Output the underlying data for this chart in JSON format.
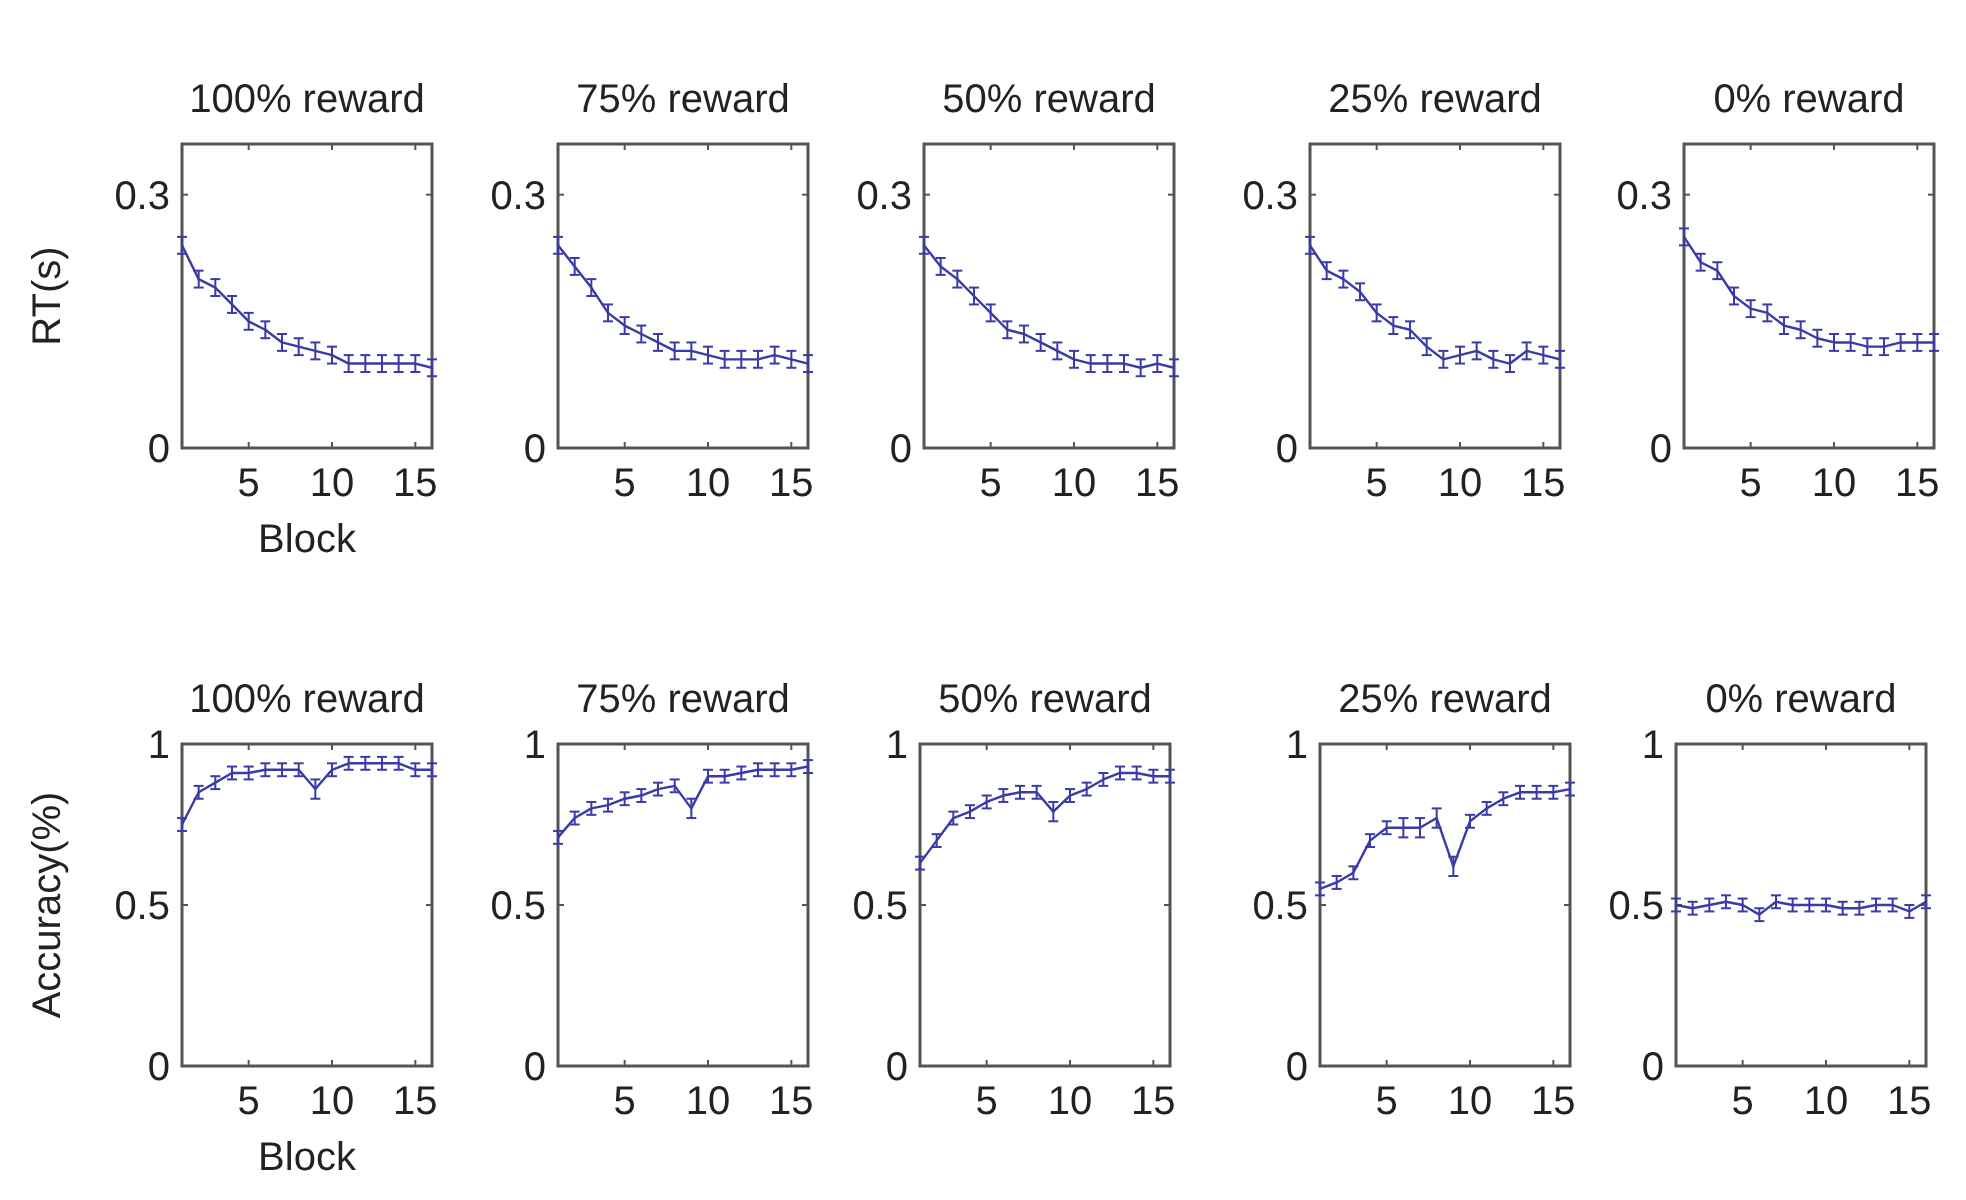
{
  "chart_data": [
    {
      "type": "line",
      "title": "100% reward",
      "xlabel": "Block",
      "ylabel": "RT(s)",
      "x": [
        1,
        2,
        3,
        4,
        5,
        6,
        7,
        8,
        9,
        10,
        11,
        12,
        13,
        14,
        15,
        16
      ],
      "xlim": [
        1,
        16
      ],
      "xticks": [
        5,
        10,
        15
      ],
      "ylim": [
        0,
        0.36
      ],
      "yticks": [
        0,
        0.3
      ],
      "grid": false,
      "series": [
        {
          "color": "#3a3aa8",
          "values": [
            0.24,
            0.2,
            0.19,
            0.17,
            0.15,
            0.14,
            0.125,
            0.12,
            0.115,
            0.11,
            0.1,
            0.1,
            0.1,
            0.1,
            0.1,
            0.095
          ],
          "errors": [
            0.01,
            0.01,
            0.01,
            0.01,
            0.01,
            0.01,
            0.01,
            0.01,
            0.01,
            0.01,
            0.01,
            0.01,
            0.01,
            0.01,
            0.01,
            0.01
          ]
        }
      ]
    },
    {
      "type": "line",
      "title": "75% reward",
      "x": [
        1,
        2,
        3,
        4,
        5,
        6,
        7,
        8,
        9,
        10,
        11,
        12,
        13,
        14,
        15,
        16
      ],
      "xlim": [
        1,
        16
      ],
      "xticks": [
        5,
        10,
        15
      ],
      "ylim": [
        0,
        0.36
      ],
      "yticks": [
        0,
        0.3
      ],
      "grid": false,
      "series": [
        {
          "color": "#3a3aa8",
          "values": [
            0.24,
            0.215,
            0.19,
            0.16,
            0.145,
            0.135,
            0.125,
            0.115,
            0.115,
            0.11,
            0.105,
            0.105,
            0.105,
            0.11,
            0.105,
            0.1
          ],
          "errors": [
            0.01,
            0.01,
            0.01,
            0.01,
            0.01,
            0.01,
            0.01,
            0.01,
            0.01,
            0.01,
            0.01,
            0.01,
            0.01,
            0.01,
            0.01,
            0.01
          ]
        }
      ]
    },
    {
      "type": "line",
      "title": "50% reward",
      "x": [
        1,
        2,
        3,
        4,
        5,
        6,
        7,
        8,
        9,
        10,
        11,
        12,
        13,
        14,
        15,
        16
      ],
      "xlim": [
        1,
        16
      ],
      "xticks": [
        5,
        10,
        15
      ],
      "ylim": [
        0,
        0.36
      ],
      "yticks": [
        0,
        0.3
      ],
      "grid": false,
      "series": [
        {
          "color": "#3a3aa8",
          "values": [
            0.24,
            0.215,
            0.2,
            0.18,
            0.16,
            0.14,
            0.135,
            0.125,
            0.115,
            0.105,
            0.1,
            0.1,
            0.1,
            0.095,
            0.1,
            0.095
          ],
          "errors": [
            0.01,
            0.01,
            0.01,
            0.01,
            0.01,
            0.01,
            0.01,
            0.01,
            0.01,
            0.01,
            0.01,
            0.01,
            0.01,
            0.01,
            0.01,
            0.01
          ]
        }
      ]
    },
    {
      "type": "line",
      "title": "25% reward",
      "x": [
        1,
        2,
        3,
        4,
        5,
        6,
        7,
        8,
        9,
        10,
        11,
        12,
        13,
        14,
        15,
        16
      ],
      "xlim": [
        1,
        16
      ],
      "xticks": [
        5,
        10,
        15
      ],
      "ylim": [
        0,
        0.36
      ],
      "yticks": [
        0,
        0.3
      ],
      "grid": false,
      "series": [
        {
          "color": "#3a3aa8",
          "values": [
            0.24,
            0.21,
            0.2,
            0.185,
            0.16,
            0.145,
            0.14,
            0.12,
            0.105,
            0.11,
            0.115,
            0.105,
            0.1,
            0.115,
            0.11,
            0.105
          ],
          "errors": [
            0.01,
            0.01,
            0.01,
            0.01,
            0.01,
            0.01,
            0.01,
            0.01,
            0.01,
            0.01,
            0.01,
            0.01,
            0.01,
            0.01,
            0.01,
            0.01
          ]
        }
      ]
    },
    {
      "type": "line",
      "title": "0% reward",
      "x": [
        1,
        2,
        3,
        4,
        5,
        6,
        7,
        8,
        9,
        10,
        11,
        12,
        13,
        14,
        15,
        16
      ],
      "xlim": [
        1,
        16
      ],
      "xticks": [
        5,
        10,
        15
      ],
      "ylim": [
        0,
        0.36
      ],
      "yticks": [
        0,
        0.3
      ],
      "grid": false,
      "series": [
        {
          "color": "#3a3aa8",
          "values": [
            0.25,
            0.22,
            0.21,
            0.18,
            0.165,
            0.16,
            0.145,
            0.14,
            0.13,
            0.125,
            0.125,
            0.12,
            0.12,
            0.125,
            0.125,
            0.125
          ],
          "errors": [
            0.01,
            0.01,
            0.01,
            0.01,
            0.01,
            0.01,
            0.01,
            0.01,
            0.01,
            0.01,
            0.01,
            0.01,
            0.01,
            0.01,
            0.01,
            0.01
          ]
        }
      ]
    },
    {
      "type": "line",
      "title": "100% reward",
      "xlabel": "Block",
      "ylabel": "Accuracy(%)",
      "x": [
        1,
        2,
        3,
        4,
        5,
        6,
        7,
        8,
        9,
        10,
        11,
        12,
        13,
        14,
        15,
        16
      ],
      "xlim": [
        1,
        16
      ],
      "xticks": [
        5,
        10,
        15
      ],
      "ylim": [
        0,
        1
      ],
      "yticks": [
        0,
        0.5,
        1
      ],
      "grid": false,
      "series": [
        {
          "color": "#3a3aa8",
          "values": [
            0.75,
            0.85,
            0.88,
            0.91,
            0.91,
            0.92,
            0.92,
            0.92,
            0.86,
            0.92,
            0.94,
            0.94,
            0.94,
            0.94,
            0.92,
            0.92
          ],
          "errors": [
            0.02,
            0.02,
            0.02,
            0.02,
            0.02,
            0.02,
            0.02,
            0.02,
            0.03,
            0.02,
            0.02,
            0.02,
            0.02,
            0.02,
            0.02,
            0.02
          ]
        }
      ]
    },
    {
      "type": "line",
      "title": "75% reward",
      "x": [
        1,
        2,
        3,
        4,
        5,
        6,
        7,
        8,
        9,
        10,
        11,
        12,
        13,
        14,
        15,
        16
      ],
      "xlim": [
        1,
        16
      ],
      "xticks": [
        5,
        10,
        15
      ],
      "ylim": [
        0,
        1
      ],
      "yticks": [
        0,
        0.5,
        1
      ],
      "grid": false,
      "series": [
        {
          "color": "#3a3aa8",
          "values": [
            0.71,
            0.77,
            0.8,
            0.81,
            0.83,
            0.84,
            0.86,
            0.87,
            0.8,
            0.9,
            0.9,
            0.91,
            0.92,
            0.92,
            0.92,
            0.93
          ],
          "errors": [
            0.02,
            0.02,
            0.02,
            0.02,
            0.02,
            0.02,
            0.02,
            0.02,
            0.03,
            0.02,
            0.02,
            0.02,
            0.02,
            0.02,
            0.02,
            0.02
          ]
        }
      ]
    },
    {
      "type": "line",
      "title": "50% reward",
      "x": [
        1,
        2,
        3,
        4,
        5,
        6,
        7,
        8,
        9,
        10,
        11,
        12,
        13,
        14,
        15,
        16
      ],
      "xlim": [
        1,
        16
      ],
      "xticks": [
        5,
        10,
        15
      ],
      "ylim": [
        0,
        1
      ],
      "yticks": [
        0,
        0.5,
        1
      ],
      "grid": false,
      "series": [
        {
          "color": "#3a3aa8",
          "values": [
            0.63,
            0.7,
            0.77,
            0.79,
            0.82,
            0.84,
            0.85,
            0.85,
            0.79,
            0.84,
            0.86,
            0.89,
            0.91,
            0.91,
            0.9,
            0.9
          ],
          "errors": [
            0.02,
            0.02,
            0.02,
            0.02,
            0.02,
            0.02,
            0.02,
            0.02,
            0.03,
            0.02,
            0.02,
            0.02,
            0.02,
            0.02,
            0.02,
            0.02
          ]
        }
      ]
    },
    {
      "type": "line",
      "title": "25% reward",
      "x": [
        1,
        2,
        3,
        4,
        5,
        6,
        7,
        8,
        9,
        10,
        11,
        12,
        13,
        14,
        15,
        16
      ],
      "xlim": [
        1,
        16
      ],
      "xticks": [
        5,
        10,
        15
      ],
      "ylim": [
        0,
        1
      ],
      "yticks": [
        0,
        0.5,
        1
      ],
      "grid": false,
      "series": [
        {
          "color": "#3a3aa8",
          "values": [
            0.55,
            0.57,
            0.6,
            0.7,
            0.74,
            0.74,
            0.74,
            0.77,
            0.62,
            0.76,
            0.8,
            0.83,
            0.85,
            0.85,
            0.85,
            0.86
          ],
          "errors": [
            0.02,
            0.02,
            0.02,
            0.02,
            0.02,
            0.03,
            0.03,
            0.03,
            0.03,
            0.02,
            0.02,
            0.02,
            0.02,
            0.02,
            0.02,
            0.02
          ]
        }
      ]
    },
    {
      "type": "line",
      "title": "0% reward",
      "x": [
        1,
        2,
        3,
        4,
        5,
        6,
        7,
        8,
        9,
        10,
        11,
        12,
        13,
        14,
        15,
        16
      ],
      "xlim": [
        1,
        16
      ],
      "xticks": [
        5,
        10,
        15
      ],
      "ylim": [
        0,
        1
      ],
      "yticks": [
        0,
        0.5,
        1
      ],
      "grid": false,
      "series": [
        {
          "color": "#3a3aa8",
          "values": [
            0.5,
            0.49,
            0.5,
            0.51,
            0.5,
            0.47,
            0.51,
            0.5,
            0.5,
            0.5,
            0.49,
            0.49,
            0.5,
            0.5,
            0.48,
            0.51
          ],
          "errors": [
            0.02,
            0.02,
            0.02,
            0.02,
            0.02,
            0.02,
            0.02,
            0.02,
            0.02,
            0.02,
            0.02,
            0.02,
            0.02,
            0.02,
            0.02,
            0.02
          ]
        }
      ]
    }
  ]
}
